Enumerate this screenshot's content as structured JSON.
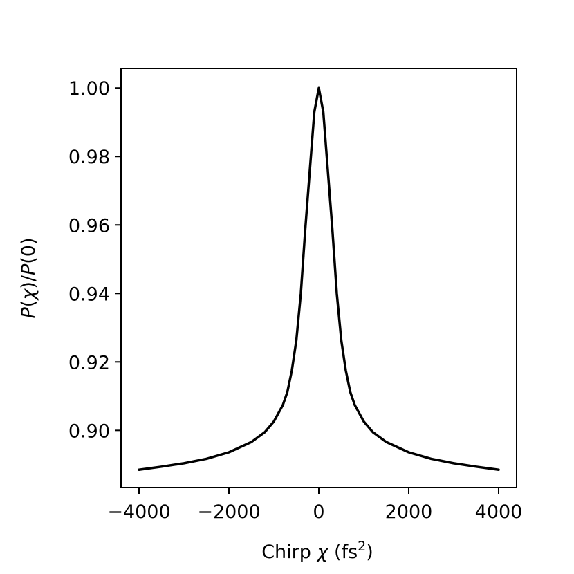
{
  "chart_data": {
    "type": "line",
    "xlabel": {
      "main": "Chirp ",
      "symbol": "χ",
      "unit_open": " (fs",
      "unit_sup": "2",
      "unit_close": ")"
    },
    "ylabel": {
      "p1": "P",
      "s1": "(",
      "chi": "χ",
      "s2": ")/",
      "p2": "P",
      "s3": "(0)"
    },
    "xlim": [
      -4400,
      4400
    ],
    "ylim": [
      0.8833,
      1.0057
    ],
    "x_ticks": [
      {
        "value": -4000,
        "label": "−4000"
      },
      {
        "value": -2000,
        "label": "−2000"
      },
      {
        "value": 0,
        "label": "0"
      },
      {
        "value": 2000,
        "label": "2000"
      },
      {
        "value": 4000,
        "label": "4000"
      }
    ],
    "y_ticks": [
      {
        "value": 0.9,
        "label": "0.90"
      },
      {
        "value": 0.92,
        "label": "0.92"
      },
      {
        "value": 0.94,
        "label": "0.94"
      },
      {
        "value": 0.96,
        "label": "0.96"
      },
      {
        "value": 0.98,
        "label": "0.98"
      },
      {
        "value": 1.0,
        "label": "1.00"
      }
    ],
    "grid": false,
    "series": [
      {
        "color": "#000000",
        "x": [
          -4000,
          -3500,
          -3000,
          -2500,
          -2000,
          -1500,
          -1200,
          -1000,
          -800,
          -700,
          -600,
          -500,
          -400,
          -300,
          -200,
          -100,
          0,
          100,
          200,
          300,
          400,
          500,
          600,
          700,
          800,
          1000,
          1200,
          1500,
          2000,
          2500,
          3000,
          3500,
          4000
        ],
        "y": [
          0.8885,
          0.8894,
          0.8904,
          0.8917,
          0.8936,
          0.8966,
          0.8995,
          0.9026,
          0.9074,
          0.9112,
          0.9175,
          0.9263,
          0.94,
          0.959,
          0.976,
          0.993,
          1.0,
          0.993,
          0.976,
          0.959,
          0.94,
          0.9263,
          0.9175,
          0.9112,
          0.9074,
          0.9026,
          0.8995,
          0.8966,
          0.8936,
          0.8917,
          0.8904,
          0.8894,
          0.8885
        ]
      }
    ]
  }
}
